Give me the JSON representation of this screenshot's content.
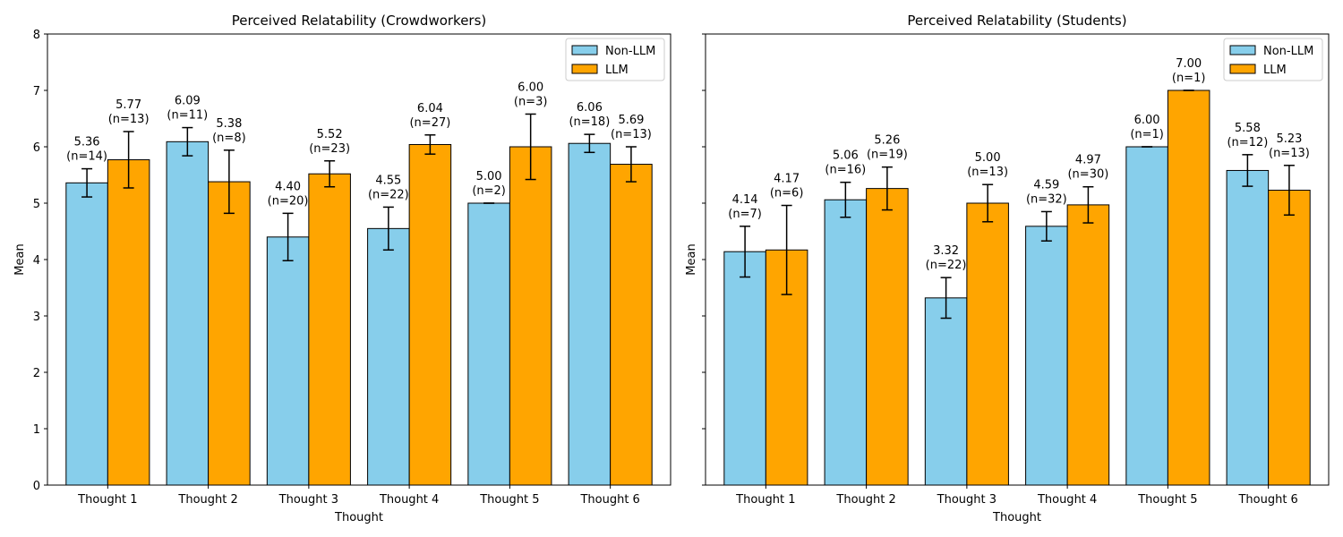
{
  "chart_data": [
    {
      "type": "bar",
      "title": "Perceived Relatability (Crowdworkers)",
      "xlabel": "Thought",
      "ylabel": "Mean",
      "ylim": [
        0,
        8
      ],
      "yticks": [
        "0",
        "1",
        "2",
        "3",
        "4",
        "5",
        "6",
        "7",
        "8"
      ],
      "grid": false,
      "legend_position": "top-right",
      "categories": [
        "Thought 1",
        "Thought 2",
        "Thought 3",
        "Thought 4",
        "Thought 5",
        "Thought 6"
      ],
      "series": [
        {
          "name": "Non-LLM",
          "color": "#87CEEB",
          "values": [
            5.36,
            6.09,
            4.4,
            4.55,
            5.0,
            6.06
          ],
          "errors": [
            0.25,
            0.25,
            0.42,
            0.38,
            0.0,
            0.16
          ],
          "value_labels": [
            "5.36",
            "6.09",
            "4.40",
            "4.55",
            "5.00",
            "6.06"
          ],
          "n_labels": [
            "(n=14)",
            "(n=11)",
            "(n=20)",
            "(n=22)",
            "(n=2)",
            "(n=18)"
          ]
        },
        {
          "name": "LLM",
          "color": "#FFA500",
          "values": [
            5.77,
            5.38,
            5.52,
            6.04,
            6.0,
            5.69
          ],
          "errors": [
            0.5,
            0.56,
            0.23,
            0.17,
            0.58,
            0.31
          ],
          "value_labels": [
            "5.77",
            "5.38",
            "5.52",
            "6.04",
            "6.00",
            "5.69"
          ],
          "n_labels": [
            "(n=13)",
            "(n=8)",
            "(n=23)",
            "(n=27)",
            "(n=3)",
            "(n=13)"
          ]
        }
      ]
    },
    {
      "type": "bar",
      "title": "Perceived Relatability (Students)",
      "xlabel": "Thought",
      "ylabel": "Mean",
      "ylim": [
        0,
        8
      ],
      "yticks": [],
      "grid": false,
      "legend_position": "top-right",
      "categories": [
        "Thought 1",
        "Thought 2",
        "Thought 3",
        "Thought 4",
        "Thought 5",
        "Thought 6"
      ],
      "series": [
        {
          "name": "Non-LLM",
          "color": "#87CEEB",
          "values": [
            4.14,
            5.06,
            3.32,
            4.59,
            6.0,
            5.58
          ],
          "errors": [
            0.45,
            0.31,
            0.36,
            0.26,
            0.0,
            0.28
          ],
          "value_labels": [
            "4.14",
            "5.06",
            "3.32",
            "4.59",
            "6.00",
            "5.58"
          ],
          "n_labels": [
            "(n=7)",
            "(n=16)",
            "(n=22)",
            "(n=32)",
            "(n=1)",
            "(n=12)"
          ]
        },
        {
          "name": "LLM",
          "color": "#FFA500",
          "values": [
            4.17,
            5.26,
            5.0,
            4.97,
            7.0,
            5.23
          ],
          "errors": [
            0.79,
            0.38,
            0.33,
            0.32,
            0.0,
            0.44
          ],
          "value_labels": [
            "4.17",
            "5.26",
            "5.00",
            "4.97",
            "7.00",
            "5.23"
          ],
          "n_labels": [
            "(n=6)",
            "(n=19)",
            "(n=13)",
            "(n=30)",
            "(n=1)",
            "(n=13)"
          ]
        }
      ]
    }
  ]
}
